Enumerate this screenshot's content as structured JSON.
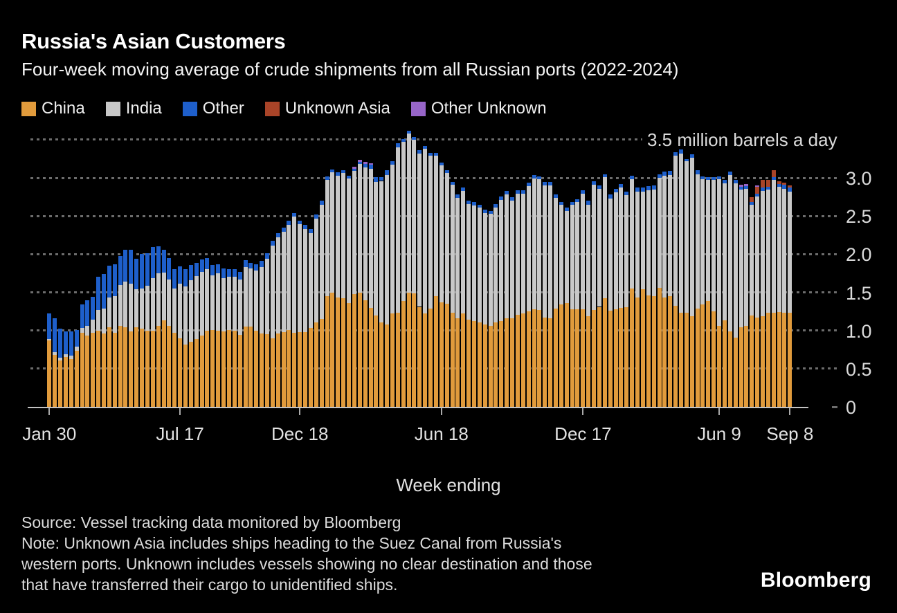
{
  "header": {
    "title": "Russia's Asian Customers",
    "subtitle": "Four-week moving average of crude shipments from all Russian ports (2022-2024)"
  },
  "legend": {
    "items": [
      {
        "label": "China",
        "color": "#e19b3c"
      },
      {
        "label": "India",
        "color": "#c8c8c8"
      },
      {
        "label": "Other",
        "color": "#1e5fcb"
      },
      {
        "label": "Unknown Asia",
        "color": "#a94428"
      },
      {
        "label": "Other Unknown",
        "color": "#9765c8"
      }
    ]
  },
  "chart_data": {
    "type": "bar",
    "stacked": true,
    "title": "Russia's Asian Customers",
    "subtitle": "Four-week moving average of crude shipments from all Russian ports (2022-2024)",
    "unit": "million barrels a day",
    "annotation": "3.5 million barrels a day",
    "xlabel": "Week ending",
    "ylim": [
      0,
      3.5
    ],
    "grid": "dotted-horizontal",
    "legend_position": "top",
    "y_ticks": [
      {
        "label": "3.0",
        "value": 3.0
      },
      {
        "label": "2.5",
        "value": 2.5
      },
      {
        "label": "2.0",
        "value": 2.0
      },
      {
        "label": "1.5",
        "value": 1.5
      },
      {
        "label": "1.0",
        "value": 1.0
      },
      {
        "label": "0.5",
        "value": 0.5
      },
      {
        "label": "0",
        "value": 0
      }
    ],
    "x_ticks": [
      {
        "label": "Jan 30",
        "week": 0
      },
      {
        "label": "Jul 17",
        "week": 24
      },
      {
        "label": "Dec 18",
        "week": 46
      },
      {
        "label": "Jun 18",
        "week": 72
      },
      {
        "label": "Dec 17",
        "week": 98
      },
      {
        "label": "Jun 9",
        "week": 123
      },
      {
        "label": "Sep 8",
        "week": 136
      }
    ],
    "weeks_total": 137,
    "series": [
      {
        "name": "China",
        "color": "#e19b3c",
        "values": [
          0.87,
          0.68,
          0.61,
          0.65,
          0.63,
          0.73,
          0.97,
          0.93,
          0.97,
          1.0,
          0.96,
          1.04,
          0.97,
          1.06,
          1.04,
          0.99,
          1.04,
          1.02,
          1.0,
          1.0,
          1.06,
          1.13,
          1.06,
          0.97,
          0.9,
          0.82,
          0.85,
          0.89,
          0.93,
          1.0,
          1.01,
          1.0,
          0.99,
          1.01,
          1.0,
          0.94,
          1.05,
          1.05,
          1.0,
          0.96,
          0.95,
          0.9,
          0.96,
          0.98,
          1.01,
          0.97,
          0.98,
          0.98,
          1.03,
          1.11,
          1.15,
          1.45,
          1.5,
          1.43,
          1.42,
          1.36,
          1.48,
          1.5,
          1.4,
          1.3,
          1.2,
          1.11,
          1.08,
          1.22,
          1.23,
          1.39,
          1.5,
          1.49,
          1.31,
          1.22,
          1.29,
          1.45,
          1.37,
          1.35,
          1.23,
          1.16,
          1.22,
          1.14,
          1.12,
          1.11,
          1.08,
          1.06,
          1.11,
          1.12,
          1.16,
          1.16,
          1.21,
          1.22,
          1.25,
          1.28,
          1.27,
          1.17,
          1.16,
          1.29,
          1.34,
          1.36,
          1.28,
          1.28,
          1.28,
          1.19,
          1.27,
          1.31,
          1.42,
          1.26,
          1.28,
          1.3,
          1.31,
          1.55,
          1.43,
          1.54,
          1.46,
          1.45,
          1.56,
          1.43,
          1.45,
          1.32,
          1.23,
          1.23,
          1.19,
          1.29,
          1.34,
          1.39,
          1.25,
          1.06,
          1.13,
          0.99,
          0.91,
          1.04,
          1.06,
          1.2,
          1.17,
          1.19,
          1.23,
          1.23,
          1.24,
          1.23,
          1.23
        ]
      },
      {
        "name": "India",
        "color": "#c8c8c8",
        "values": [
          0.02,
          0.04,
          0.03,
          0.04,
          0.04,
          0.06,
          0.06,
          0.13,
          0.17,
          0.27,
          0.33,
          0.39,
          0.48,
          0.54,
          0.6,
          0.62,
          0.5,
          0.53,
          0.59,
          0.69,
          0.69,
          0.63,
          0.61,
          0.58,
          0.71,
          0.76,
          0.81,
          0.82,
          0.84,
          0.8,
          0.71,
          0.75,
          0.7,
          0.69,
          0.7,
          0.73,
          0.78,
          0.76,
          0.79,
          0.87,
          0.99,
          1.21,
          1.26,
          1.31,
          1.37,
          1.52,
          1.41,
          1.35,
          1.25,
          1.36,
          1.5,
          1.52,
          1.57,
          1.6,
          1.64,
          1.63,
          1.61,
          1.68,
          1.74,
          1.82,
          1.75,
          1.85,
          1.96,
          1.95,
          2.17,
          2.08,
          2.08,
          2.01,
          2.01,
          2.16,
          2.0,
          1.84,
          1.79,
          1.71,
          1.68,
          1.58,
          1.61,
          1.52,
          1.52,
          1.5,
          1.46,
          1.47,
          1.5,
          1.59,
          1.62,
          1.54,
          1.58,
          1.57,
          1.64,
          1.71,
          1.71,
          1.73,
          1.74,
          1.45,
          1.31,
          1.21,
          1.37,
          1.4,
          1.51,
          1.46,
          1.64,
          1.55,
          1.59,
          1.47,
          1.53,
          1.57,
          1.46,
          1.43,
          1.39,
          1.28,
          1.38,
          1.4,
          1.44,
          1.6,
          1.59,
          1.97,
          2.09,
          1.99,
          2.07,
          1.76,
          1.64,
          1.58,
          1.72,
          1.92,
          1.8,
          2.05,
          2.02,
          1.81,
          1.8,
          1.45,
          1.59,
          1.64,
          1.62,
          1.74,
          1.64,
          1.63,
          1.59
        ]
      },
      {
        "name": "Other",
        "color": "#1e5fcb",
        "values": [
          0.33,
          0.44,
          0.38,
          0.3,
          0.32,
          0.22,
          0.31,
          0.34,
          0.3,
          0.43,
          0.45,
          0.42,
          0.42,
          0.38,
          0.42,
          0.45,
          0.4,
          0.45,
          0.42,
          0.4,
          0.35,
          0.3,
          0.28,
          0.25,
          0.23,
          0.22,
          0.2,
          0.18,
          0.16,
          0.15,
          0.14,
          0.12,
          0.12,
          0.1,
          0.1,
          0.1,
          0.09,
          0.08,
          0.08,
          0.08,
          0.07,
          0.07,
          0.06,
          0.06,
          0.06,
          0.05,
          0.05,
          0.05,
          0.05,
          0.05,
          0.05,
          0.05,
          0.04,
          0.04,
          0.04,
          0.04,
          0.03,
          0.03,
          0.04,
          0.05,
          0.06,
          0.05,
          0.06,
          0.05,
          0.05,
          0.04,
          0.04,
          0.04,
          0.04,
          0.04,
          0.04,
          0.04,
          0.04,
          0.04,
          0.04,
          0.04,
          0.04,
          0.04,
          0.04,
          0.04,
          0.04,
          0.04,
          0.05,
          0.05,
          0.05,
          0.05,
          0.05,
          0.05,
          0.05,
          0.05,
          0.04,
          0.05,
          0.05,
          0.04,
          0.03,
          0.04,
          0.03,
          0.04,
          0.05,
          0.05,
          0.05,
          0.04,
          0.04,
          0.05,
          0.05,
          0.05,
          0.05,
          0.05,
          0.05,
          0.05,
          0.05,
          0.05,
          0.05,
          0.05,
          0.05,
          0.05,
          0.05,
          0.03,
          0.05,
          0.05,
          0.04,
          0.04,
          0.04,
          0.04,
          0.04,
          0.04,
          0.04,
          0.03,
          0.03,
          0.03,
          0.03,
          0.04,
          0.03,
          0.04,
          0.04,
          0.05,
          0.05
        ]
      },
      {
        "name": "Unknown Asia",
        "color": "#a94428",
        "values": [
          0,
          0,
          0,
          0,
          0,
          0,
          0,
          0,
          0,
          0,
          0,
          0,
          0,
          0,
          0,
          0,
          0,
          0,
          0,
          0,
          0,
          0,
          0,
          0,
          0,
          0,
          0,
          0,
          0,
          0,
          0,
          0,
          0,
          0,
          0,
          0,
          0,
          0,
          0,
          0,
          0,
          0,
          0,
          0,
          0,
          0,
          0,
          0,
          0,
          0,
          0,
          0,
          0,
          0,
          0,
          0,
          0,
          0,
          0,
          0,
          0,
          0,
          0,
          0,
          0,
          0,
          0,
          0,
          0,
          0,
          0,
          0,
          0,
          0,
          0,
          0,
          0,
          0,
          0,
          0,
          0,
          0,
          0,
          0,
          0,
          0,
          0,
          0,
          0,
          0,
          0,
          0,
          0,
          0,
          0,
          0,
          0,
          0,
          0,
          0,
          0,
          0,
          0,
          0,
          0,
          0,
          0,
          0,
          0,
          0,
          0,
          0,
          0,
          0,
          0,
          0,
          0,
          0,
          0,
          0,
          0,
          0,
          0,
          0,
          0,
          0,
          0,
          0,
          0,
          0.07,
          0.09,
          0.1,
          0.09,
          0.09,
          0.04,
          0.03,
          0.03
        ]
      },
      {
        "name": "Other Unknown",
        "color": "#9765c8",
        "values": [
          0,
          0,
          0,
          0,
          0,
          0,
          0,
          0,
          0,
          0,
          0,
          0,
          0,
          0,
          0,
          0,
          0,
          0,
          0,
          0,
          0,
          0,
          0,
          0,
          0,
          0,
          0,
          0,
          0,
          0,
          0,
          0,
          0,
          0,
          0,
          0,
          0,
          0,
          0,
          0,
          0,
          0,
          0,
          0,
          0,
          0,
          0,
          0,
          0,
          0,
          0,
          0,
          0,
          0,
          0,
          0,
          0.03,
          0.03,
          0.03,
          0.02,
          0,
          0,
          0,
          0,
          0,
          0,
          0,
          0,
          0,
          0,
          0,
          0,
          0,
          0,
          0,
          0,
          0,
          0,
          0,
          0,
          0,
          0,
          0,
          0,
          0,
          0,
          0,
          0,
          0,
          0,
          0,
          0,
          0,
          0,
          0,
          0,
          0,
          0,
          0,
          0,
          0,
          0,
          0,
          0,
          0,
          0,
          0,
          0,
          0,
          0,
          0,
          0,
          0,
          0,
          0,
          0,
          0,
          0,
          0,
          0,
          0,
          0,
          0,
          0,
          0,
          0,
          0,
          0.03,
          0.03,
          0,
          0.02,
          0,
          0,
          0,
          0,
          0,
          0
        ]
      }
    ]
  },
  "footer": {
    "source": "Source: Vessel tracking data monitored by Bloomberg",
    "note_lines": [
      "Note: Unknown Asia includes ships heading to the Suez Canal from Russia's",
      "western ports. Unknown includes vessels showing no clear destination and those",
      "that have transferred their cargo to unidentified ships."
    ],
    "logo": "Bloomberg"
  }
}
